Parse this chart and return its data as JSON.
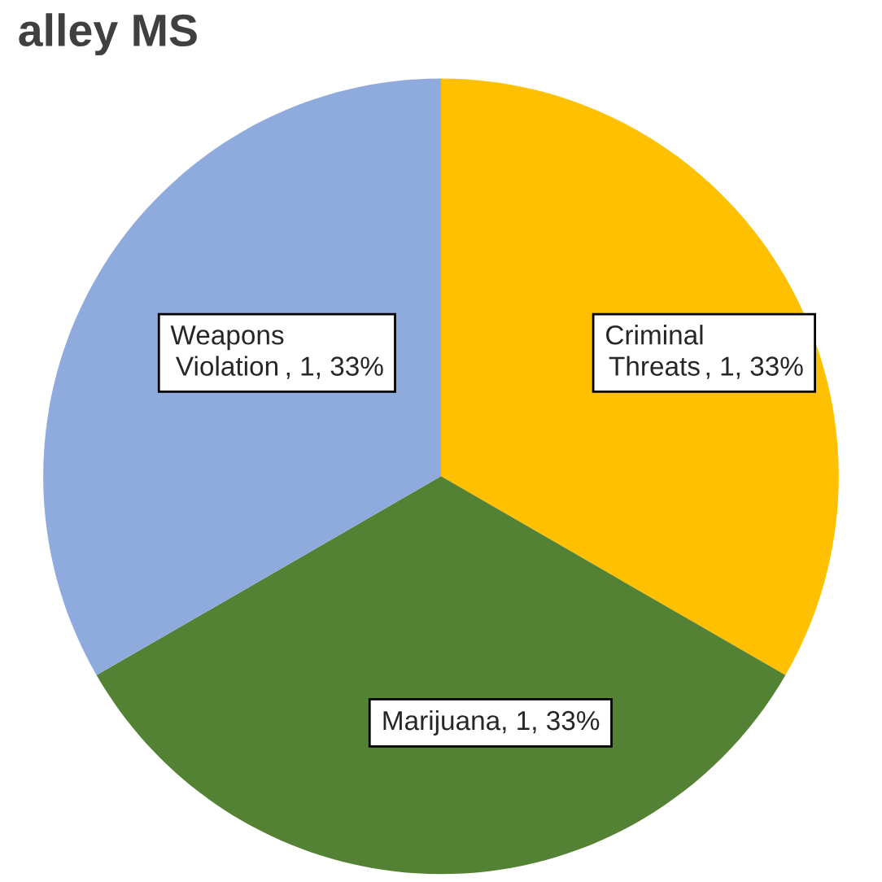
{
  "chart_data": {
    "type": "pie",
    "title": "alley MS",
    "categories": [
      "Criminal Threats",
      "Marijuana",
      "Weapons Violation"
    ],
    "values": [
      1,
      1,
      1
    ],
    "colors": [
      "#ffc000",
      "#548235",
      "#8faadc"
    ],
    "value_labels": [
      ", 1, 33%",
      ", 1, 33%",
      ", 1, 33%"
    ],
    "legend": false
  }
}
